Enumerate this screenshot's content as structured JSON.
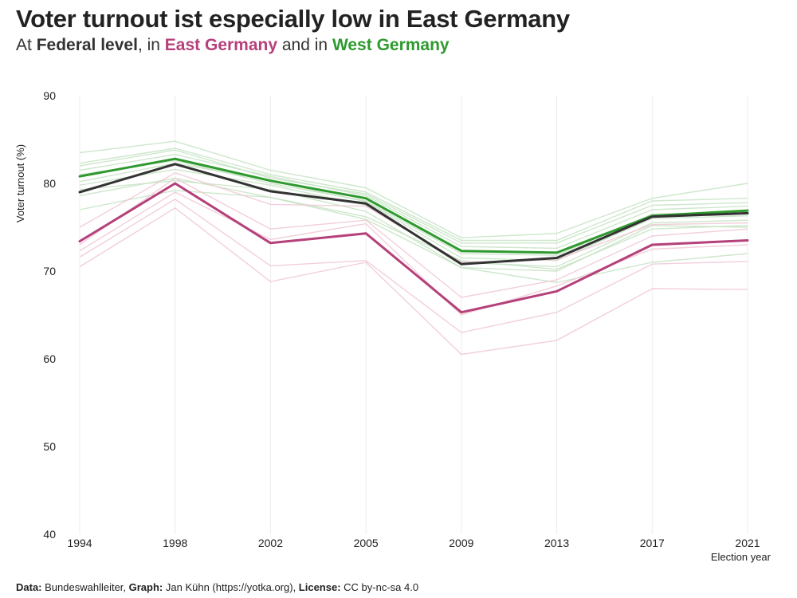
{
  "title": "Voter turnout ist especially low in East Germany",
  "subtitle": {
    "prefix": "At ",
    "federal": "Federal level",
    "mid1": ", in ",
    "east": "East Germany",
    "mid2": " and in ",
    "west": "West Germany"
  },
  "caption": {
    "data_label": "Data:",
    "data_value": " Bundeswahlleiter, ",
    "graph_label": "Graph:",
    "graph_value": " Jan Kühn (https://yotka.org), ",
    "license_label": "License:",
    "license_value": " CC by-nc-sa 4.0"
  },
  "colors": {
    "east": "#b5407a",
    "west": "#2e9a2e",
    "federal": "#333333",
    "east_light": "#f0c7d6",
    "west_light": "#c6e3c3",
    "grid": "#ececec"
  },
  "chart_data": {
    "type": "line",
    "xlabel": "Election year",
    "ylabel": "Voter turnout (%)",
    "ylim": [
      40,
      90
    ],
    "yticks": [
      40,
      50,
      60,
      70,
      80,
      90
    ],
    "x": [
      1994,
      1998,
      2002,
      2005,
      2009,
      2013,
      2017,
      2021
    ],
    "grid": true,
    "legend": "subtitle",
    "series": [
      {
        "name": "Federal level",
        "group": "federal",
        "values": [
          79.0,
          82.2,
          79.1,
          77.7,
          70.8,
          71.5,
          76.2,
          76.6
        ]
      },
      {
        "name": "East Germany",
        "group": "east",
        "values": [
          73.4,
          80.0,
          73.2,
          74.3,
          65.3,
          67.7,
          73.0,
          73.5
        ]
      },
      {
        "name": "West Germany",
        "group": "west",
        "values": [
          80.8,
          82.8,
          80.3,
          78.3,
          72.3,
          72.1,
          76.3,
          76.9
        ]
      }
    ],
    "background_series": [
      {
        "group": "west",
        "values": [
          83.5,
          84.8,
          81.5,
          79.5,
          73.8,
          74.3,
          78.3,
          80.0
        ]
      },
      {
        "group": "west",
        "values": [
          82.3,
          84.0,
          81.0,
          79.0,
          73.5,
          73.5,
          78.0,
          78.3
        ]
      },
      {
        "group": "west",
        "values": [
          82.0,
          83.8,
          80.6,
          78.8,
          73.2,
          73.2,
          77.5,
          77.8
        ]
      },
      {
        "group": "west",
        "values": [
          81.5,
          83.3,
          80.8,
          78.6,
          72.8,
          72.6,
          77.0,
          77.4
        ]
      },
      {
        "group": "west",
        "values": [
          81.0,
          82.6,
          80.0,
          78.0,
          72.0,
          71.8,
          76.5,
          76.8
        ]
      },
      {
        "group": "west",
        "values": [
          80.2,
          82.3,
          80.3,
          77.9,
          71.5,
          71.2,
          76.0,
          76.3
        ]
      },
      {
        "group": "west",
        "values": [
          79.8,
          81.6,
          79.8,
          77.5,
          71.0,
          70.5,
          75.5,
          75.8
        ]
      },
      {
        "group": "west",
        "values": [
          79.3,
          80.3,
          79.3,
          76.8,
          70.4,
          70.0,
          75.2,
          75.0
        ]
      },
      {
        "group": "west",
        "values": [
          78.6,
          80.6,
          78.4,
          75.9,
          70.4,
          68.7,
          71.0,
          72.0
        ]
      },
      {
        "group": "west",
        "values": [
          77.0,
          79.2,
          78.4,
          76.2,
          71.2,
          70.2,
          74.8,
          75.2
        ]
      },
      {
        "group": "east",
        "values": [
          75.0,
          81.2,
          77.6,
          77.4,
          71.0,
          71.3,
          75.3,
          75.5
        ]
      },
      {
        "group": "east",
        "values": [
          73.0,
          80.6,
          74.8,
          75.8,
          67.0,
          69.0,
          74.0,
          74.8
        ]
      },
      {
        "group": "east",
        "values": [
          72.3,
          79.0,
          73.6,
          75.4,
          65.0,
          68.3,
          72.5,
          73.0
        ]
      },
      {
        "group": "east",
        "values": [
          71.6,
          78.2,
          70.6,
          71.2,
          63.0,
          65.3,
          70.8,
          71.1
        ]
      },
      {
        "group": "east",
        "values": [
          70.5,
          77.2,
          68.8,
          71.0,
          60.5,
          62.1,
          68.0,
          67.9
        ]
      }
    ]
  }
}
